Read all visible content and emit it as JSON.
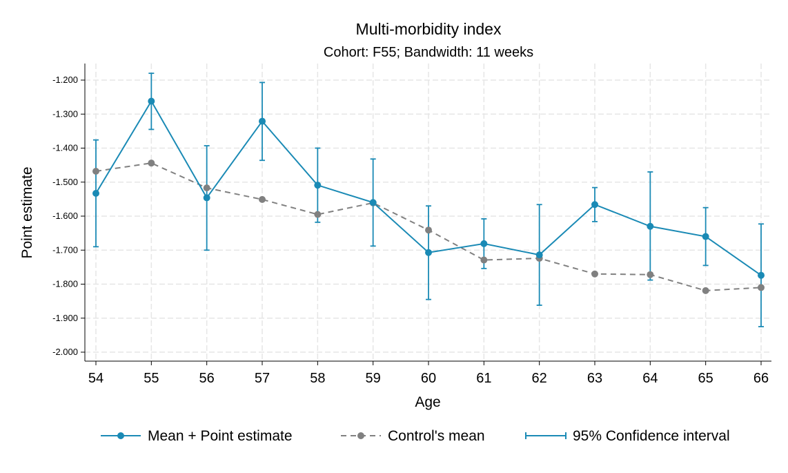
{
  "chart_data": {
    "type": "line",
    "title": "Multi-morbidity index",
    "subtitle": "Cohort: F55; Bandwidth: 11 weeks",
    "xlabel": "Age",
    "ylabel": "Point estimate",
    "x": [
      54,
      55,
      56,
      57,
      58,
      59,
      60,
      61,
      62,
      63,
      64,
      65,
      66
    ],
    "y_ticks": [
      -1.2,
      -1.3,
      -1.4,
      -1.5,
      -1.6,
      -1.7,
      -1.8,
      -1.9,
      -2.0
    ],
    "y_tick_labels": [
      "-1.200",
      "-1.300",
      "-1.400",
      "-1.500",
      "-1.600",
      "-1.700",
      "-1.800",
      "-1.900",
      "-2.000"
    ],
    "ylim": [
      -2.03,
      -1.15
    ],
    "grid": true,
    "legend_position": "bottom",
    "series": [
      {
        "name": "Mean + Point estimate",
        "style": "solid-line-with-markers",
        "color": "#1a8ab5",
        "values": [
          -1.533,
          -1.262,
          -1.546,
          -1.321,
          -1.509,
          -1.56,
          -1.707,
          -1.681,
          -1.714,
          -1.566,
          -1.63,
          -1.66,
          -1.774
        ],
        "ci_low": [
          -1.69,
          -1.345,
          -1.7,
          -1.436,
          -1.618,
          -1.688,
          -1.845,
          -1.754,
          -1.862,
          -1.616,
          -1.788,
          -1.745,
          -1.925
        ],
        "ci_high": [
          -1.376,
          -1.18,
          -1.393,
          -1.207,
          -1.4,
          -1.432,
          -1.57,
          -1.608,
          -1.566,
          -1.516,
          -1.47,
          -1.575,
          -1.623
        ]
      },
      {
        "name": "Control's mean",
        "style": "dashed-line-with-markers",
        "color": "#808080",
        "values": [
          -1.468,
          -1.444,
          -1.517,
          -1.551,
          -1.595,
          -1.561,
          -1.641,
          -1.729,
          -1.724,
          -1.77,
          -1.772,
          -1.819,
          -1.81
        ]
      },
      {
        "name": "95% Confidence interval",
        "style": "error-bars",
        "color": "#1a8ab5"
      }
    ]
  }
}
